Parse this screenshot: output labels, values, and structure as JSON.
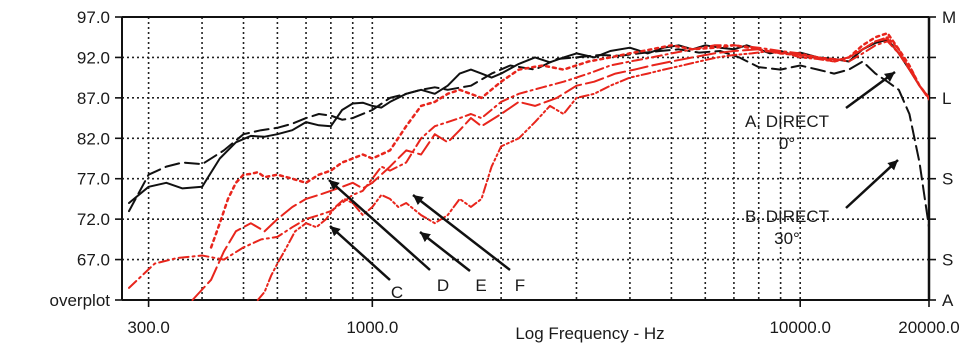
{
  "chart_data": {
    "type": "line",
    "xlabel": "Log Frequency - Hz",
    "x_scale": "log",
    "xlim": [
      260,
      20000
    ],
    "ylim": [
      62.0,
      97.0
    ],
    "grid": true,
    "x_tick_labels": [
      {
        "value": 300,
        "label": "300.0"
      },
      {
        "value": 1000,
        "label": "1000.0"
      },
      {
        "value": 10000,
        "label": "10000.0"
      },
      {
        "value": 20000,
        "label": "20000.0"
      }
    ],
    "y_tick_labels": [
      {
        "value": 97.0,
        "label": "97.0"
      },
      {
        "value": 92.0,
        "label": "92.0"
      },
      {
        "value": 87.0,
        "label": "87.0"
      },
      {
        "value": 82.0,
        "label": "82.0"
      },
      {
        "value": 77.0,
        "label": "77.0"
      },
      {
        "value": 72.0,
        "label": "72.0"
      },
      {
        "value": 67.0,
        "label": "67.0"
      },
      {
        "value": 62.0,
        "label": "overplot"
      }
    ],
    "right_labels": [
      {
        "value": 97.0,
        "label": "M"
      },
      {
        "value": 87.0,
        "label": "L"
      },
      {
        "value": 77.0,
        "label": "S"
      },
      {
        "value": 67.0,
        "label": "S"
      },
      {
        "value": 62.0,
        "label": "A"
      }
    ],
    "series": [
      {
        "name": "A. DIRECT 0°",
        "color": "#111111",
        "dash": "solid",
        "width": 2.0,
        "x": [
          270,
          300,
          330,
          360,
          400,
          440,
          480,
          520,
          560,
          600,
          650,
          700,
          750,
          800,
          850,
          900,
          950,
          1000,
          1050,
          1100,
          1200,
          1300,
          1400,
          1500,
          1600,
          1700,
          1800,
          1900,
          2000,
          2200,
          2400,
          2600,
          2800,
          3000,
          3300,
          3600,
          4000,
          4400,
          4800,
          5200,
          5600,
          6000,
          6500,
          7000,
          7500,
          8000,
          8500,
          9000,
          9500,
          10000,
          11000,
          12000,
          13000,
          14000,
          15000,
          16000,
          17000,
          18000,
          19000,
          20000
        ],
        "y": [
          74.0,
          76.0,
          76.5,
          75.8,
          76.0,
          79.5,
          81.5,
          82.3,
          82.2,
          82.5,
          83.0,
          84.0,
          83.6,
          83.5,
          85.5,
          86.3,
          86.4,
          86.0,
          85.8,
          86.5,
          87.5,
          88.0,
          87.5,
          88.5,
          90.0,
          90.5,
          90.0,
          89.5,
          90.0,
          91.2,
          92.0,
          91.4,
          92.0,
          92.5,
          92.0,
          92.8,
          93.2,
          92.5,
          93.2,
          93.5,
          93.0,
          93.5,
          93.2,
          93.0,
          93.5,
          93.0,
          92.5,
          92.8,
          92.4,
          92.6,
          92.0,
          91.8,
          91.5,
          93.0,
          93.8,
          94.2,
          92.5,
          90.5,
          88.5,
          87.0
        ]
      },
      {
        "name": "B. DIRECT 30°",
        "color": "#111111",
        "dash": "long",
        "width": 2.0,
        "x": [
          270,
          300,
          330,
          360,
          400,
          450,
          500,
          550,
          600,
          650,
          700,
          750,
          800,
          850,
          900,
          1000,
          1100,
          1200,
          1300,
          1400,
          1500,
          1700,
          1900,
          2100,
          2400,
          2700,
          3000,
          3400,
          3800,
          4200,
          4700,
          5200,
          5800,
          6500,
          7200,
          8000,
          9000,
          10000,
          11000,
          12000,
          13000,
          14000,
          15000,
          16000,
          17000,
          18000,
          19000,
          20000
        ],
        "y": [
          73.0,
          77.5,
          78.5,
          79.0,
          78.8,
          80.5,
          82.5,
          83.0,
          83.3,
          83.8,
          84.5,
          85.0,
          84.8,
          84.3,
          84.5,
          85.5,
          87.0,
          87.5,
          88.0,
          88.3,
          88.0,
          88.5,
          90.0,
          91.0,
          90.5,
          91.8,
          92.0,
          92.3,
          92.2,
          92.5,
          92.8,
          93.0,
          92.6,
          92.8,
          92.0,
          90.8,
          90.5,
          91.0,
          90.5,
          90.0,
          90.5,
          91.5,
          90.0,
          89.0,
          88.0,
          85.0,
          79.0,
          71.0
        ]
      },
      {
        "name": "C",
        "color": "#e8251c",
        "dash": "dashdot",
        "width": 2.0,
        "x": [
          270,
          310,
          350,
          400,
          450,
          500,
          550,
          600,
          650,
          700,
          750,
          800,
          850,
          900,
          950,
          1000,
          1050,
          1100,
          1200,
          1300,
          1400,
          1500,
          1600,
          1700,
          1800,
          2000,
          2200,
          2500,
          2800,
          3200,
          3600,
          4000,
          4500,
          5000,
          5600,
          6300,
          7000,
          8000,
          9000,
          10000,
          11000,
          12000,
          13000,
          14000,
          15000,
          16000,
          17000,
          18000,
          19000,
          20000
        ],
        "y": [
          63.5,
          66.5,
          67.2,
          67.5,
          67.0,
          68.5,
          69.5,
          69.8,
          71.0,
          72.0,
          72.5,
          73.0,
          74.0,
          75.0,
          75.5,
          77.0,
          78.5,
          78.0,
          79.0,
          82.0,
          83.5,
          84.0,
          84.5,
          85.0,
          84.5,
          86.5,
          87.5,
          88.3,
          89.0,
          90.0,
          91.0,
          91.5,
          92.0,
          92.5,
          93.0,
          93.5,
          93.5,
          93.2,
          92.8,
          92.5,
          92.0,
          91.8,
          91.5,
          92.5,
          93.5,
          94.0,
          92.5,
          91.0,
          88.5,
          86.8
        ]
      },
      {
        "name": "D",
        "color": "#e8251c",
        "dash": "dotted",
        "width": 2.5,
        "x": [
          420,
          440,
          460,
          480,
          500,
          520,
          540,
          560,
          600,
          650,
          700,
          750,
          800,
          850,
          900,
          950,
          1000,
          1100,
          1200,
          1300,
          1400,
          1500,
          1600,
          1800,
          2000,
          2200,
          2500,
          2800,
          3200,
          3600,
          4000,
          4500,
          5000,
          5600,
          6300,
          7000,
          8000,
          9000,
          10000,
          11000,
          12000,
          13000,
          14000,
          15000,
          16000,
          17000,
          18000,
          19000,
          20000
        ],
        "y": [
          68.5,
          71.5,
          74.5,
          76.5,
          77.5,
          77.6,
          77.8,
          77.2,
          77.5,
          77.0,
          76.5,
          77.5,
          78.0,
          79.0,
          79.5,
          80.0,
          79.5,
          80.5,
          83.5,
          86.0,
          86.5,
          87.5,
          88.0,
          87.0,
          89.0,
          90.5,
          91.0,
          90.5,
          91.5,
          92.0,
          92.5,
          93.0,
          93.5,
          93.0,
          93.2,
          93.5,
          93.0,
          92.5,
          92.3,
          92.0,
          91.5,
          92.0,
          93.5,
          94.5,
          95.0,
          93.0,
          91.0,
          88.5,
          87.0
        ]
      },
      {
        "name": "E",
        "color": "#e8251c",
        "dash": "longdash",
        "width": 2.0,
        "x": [
          380,
          420,
          450,
          480,
          520,
          560,
          600,
          650,
          700,
          750,
          800,
          850,
          900,
          950,
          1000,
          1100,
          1200,
          1300,
          1400,
          1500,
          1600,
          1700,
          1800,
          2000,
          2200,
          2400,
          2700,
          3000,
          3300,
          3700,
          4100,
          4500,
          5000,
          5600,
          6300,
          7000,
          8000,
          9000,
          10000,
          11000,
          12000,
          13000,
          14000,
          15000,
          16000,
          17000,
          18000,
          19000,
          20000
        ],
        "y": [
          62.0,
          64.5,
          68.0,
          70.5,
          71.5,
          70.5,
          72.0,
          73.5,
          74.5,
          75.0,
          75.5,
          76.0,
          76.5,
          75.8,
          76.5,
          78.5,
          80.5,
          80.0,
          82.5,
          81.5,
          83.0,
          84.5,
          83.5,
          85.0,
          86.5,
          86.0,
          87.0,
          88.5,
          89.0,
          90.0,
          90.5,
          91.0,
          91.5,
          92.0,
          92.5,
          92.8,
          93.0,
          92.5,
          92.3,
          92.0,
          91.6,
          92.0,
          93.0,
          94.0,
          94.3,
          92.5,
          90.5,
          88.5,
          87.0
        ]
      },
      {
        "name": "F",
        "color": "#e8251c",
        "dash": "dashdotdot",
        "width": 2.0,
        "x": [
          540,
          560,
          580,
          600,
          630,
          660,
          700,
          740,
          780,
          820,
          860,
          900,
          950,
          1000,
          1050,
          1100,
          1150,
          1200,
          1300,
          1400,
          1500,
          1600,
          1700,
          1800,
          1900,
          2000,
          2200,
          2400,
          2600,
          2800,
          3000,
          3300,
          3600,
          4000,
          4400,
          4800,
          5300,
          5800,
          6400,
          7000,
          7700,
          8500,
          9300,
          10000,
          11000,
          12000,
          13000,
          14000,
          15000,
          16000,
          17000,
          18000,
          19000,
          20000
        ],
        "y": [
          62.0,
          63.0,
          65.0,
          66.5,
          68.5,
          70.5,
          71.5,
          71.0,
          72.0,
          73.5,
          74.5,
          74.0,
          72.5,
          73.5,
          75.0,
          74.5,
          73.5,
          74.0,
          72.5,
          71.5,
          72.5,
          74.5,
          73.5,
          74.5,
          78.5,
          81.0,
          82.0,
          84.0,
          86.0,
          85.0,
          87.0,
          87.5,
          88.5,
          89.5,
          90.0,
          90.5,
          91.0,
          91.5,
          92.0,
          92.3,
          92.5,
          92.8,
          92.5,
          92.0,
          91.8,
          91.5,
          92.0,
          93.0,
          94.0,
          94.5,
          93.0,
          90.5,
          88.5,
          87.0
        ]
      }
    ],
    "annotations": [
      {
        "id": "A",
        "lines": [
          "A. DIRECT",
          "0°"
        ]
      },
      {
        "id": "B",
        "lines": [
          "B. DIRECT",
          "30°"
        ]
      },
      {
        "id": "C",
        "lines": [
          "C"
        ]
      },
      {
        "id": "D",
        "lines": [
          "D"
        ]
      },
      {
        "id": "E",
        "lines": [
          "E"
        ]
      },
      {
        "id": "F",
        "lines": [
          "F"
        ]
      }
    ]
  }
}
